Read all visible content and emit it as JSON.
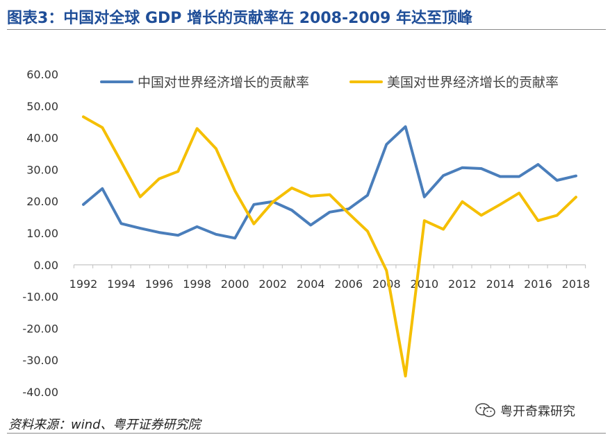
{
  "header": {
    "title": "图表3：中国对全球 GDP 增长的贡献率在 2008-2009 年达至顶峰"
  },
  "footer": {
    "source": "资料来源：wind、粤开证券研究院",
    "watermark_text": "粤开奇霖研究",
    "watermark_icon": "wechat-icon"
  },
  "colors": {
    "title": "#1f4e98",
    "china_series": "#4a7ebb",
    "us_series": "#f5bf00",
    "axis": "#bfbfbf"
  },
  "chart_data": {
    "type": "line",
    "x": [
      1992,
      1993,
      1994,
      1995,
      1996,
      1997,
      1998,
      1999,
      2000,
      2001,
      2002,
      2003,
      2004,
      2005,
      2006,
      2007,
      2008,
      2009,
      2010,
      2011,
      2012,
      2013,
      2014,
      2015,
      2016,
      2017,
      2018
    ],
    "x_tick_labels": [
      "1992",
      "1994",
      "1996",
      "1998",
      "2000",
      "2002",
      "2004",
      "2006",
      "2008",
      "2010",
      "2012",
      "2014",
      "2016",
      "2018"
    ],
    "y_tick_labels": [
      "60.00",
      "50.00",
      "40.00",
      "30.00",
      "20.00",
      "10.00",
      "0.00",
      "-10.00",
      "-20.00",
      "-30.00",
      "-40.00"
    ],
    "ylim": [
      -40,
      60
    ],
    "y_step": 10,
    "grid": false,
    "legend_position": "top",
    "xlabel": "",
    "ylabel": "",
    "series": [
      {
        "name": "中国对世界经济增长的贡献率",
        "color": "#4a7ebb",
        "values": [
          19.0,
          24.0,
          13.0,
          11.5,
          10.2,
          9.3,
          12.0,
          9.6,
          8.4,
          19.0,
          19.9,
          17.2,
          12.5,
          16.6,
          17.6,
          21.9,
          37.9,
          43.5,
          21.4,
          28.1,
          30.6,
          30.3,
          27.8,
          27.8,
          31.6,
          26.6,
          28.0
        ]
      },
      {
        "name": "美国对世界经济增长的贡献率",
        "color": "#f5bf00",
        "values": [
          46.6,
          43.2,
          32.4,
          21.4,
          27.1,
          29.4,
          42.9,
          36.6,
          23.3,
          12.9,
          19.8,
          24.2,
          21.6,
          22.1,
          16.2,
          10.6,
          -1.8,
          -35.0,
          13.9,
          11.2,
          19.9,
          15.6,
          19.0,
          22.6,
          13.9,
          15.6,
          21.3
        ]
      }
    ]
  }
}
